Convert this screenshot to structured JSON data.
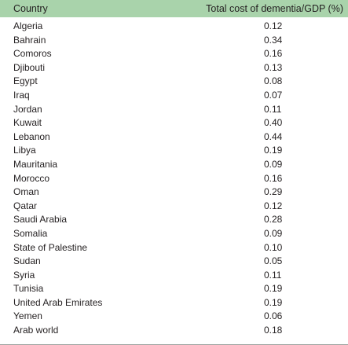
{
  "table": {
    "headers": {
      "country": "Country",
      "cost": "Total cost of dementia/GDP (%)"
    },
    "rows": [
      {
        "country": "Algeria",
        "value": "0.12"
      },
      {
        "country": "Bahrain",
        "value": "0.34"
      },
      {
        "country": "Comoros",
        "value": "0.16"
      },
      {
        "country": "Djibouti",
        "value": "0.13"
      },
      {
        "country": "Egypt",
        "value": "0.08"
      },
      {
        "country": "Iraq",
        "value": "0.07"
      },
      {
        "country": "Jordan",
        "value": "0.11"
      },
      {
        "country": "Kuwait",
        "value": "0.40"
      },
      {
        "country": "Lebanon",
        "value": "0.44"
      },
      {
        "country": "Libya",
        "value": "0.19"
      },
      {
        "country": "Mauritania",
        "value": "0.09"
      },
      {
        "country": "Morocco",
        "value": "0.16"
      },
      {
        "country": "Oman",
        "value": "0.29"
      },
      {
        "country": "Qatar",
        "value": "0.12"
      },
      {
        "country": "Saudi Arabia",
        "value": "0.28"
      },
      {
        "country": "Somalia",
        "value": "0.09"
      },
      {
        "country": "State of Palestine",
        "value": "0.10"
      },
      {
        "country": "Sudan",
        "value": "0.05"
      },
      {
        "country": "Syria",
        "value": "0.11"
      },
      {
        "country": "Tunisia",
        "value": "0.19"
      },
      {
        "country": "United Arab Emirates",
        "value": "0.19"
      },
      {
        "country": "Yemen",
        "value": "0.06"
      },
      {
        "country": "Arab world",
        "value": "0.18"
      }
    ]
  },
  "colors": {
    "header_background": "#a9d3ab",
    "text": "#231f20",
    "rule": "#9ea3a0"
  }
}
